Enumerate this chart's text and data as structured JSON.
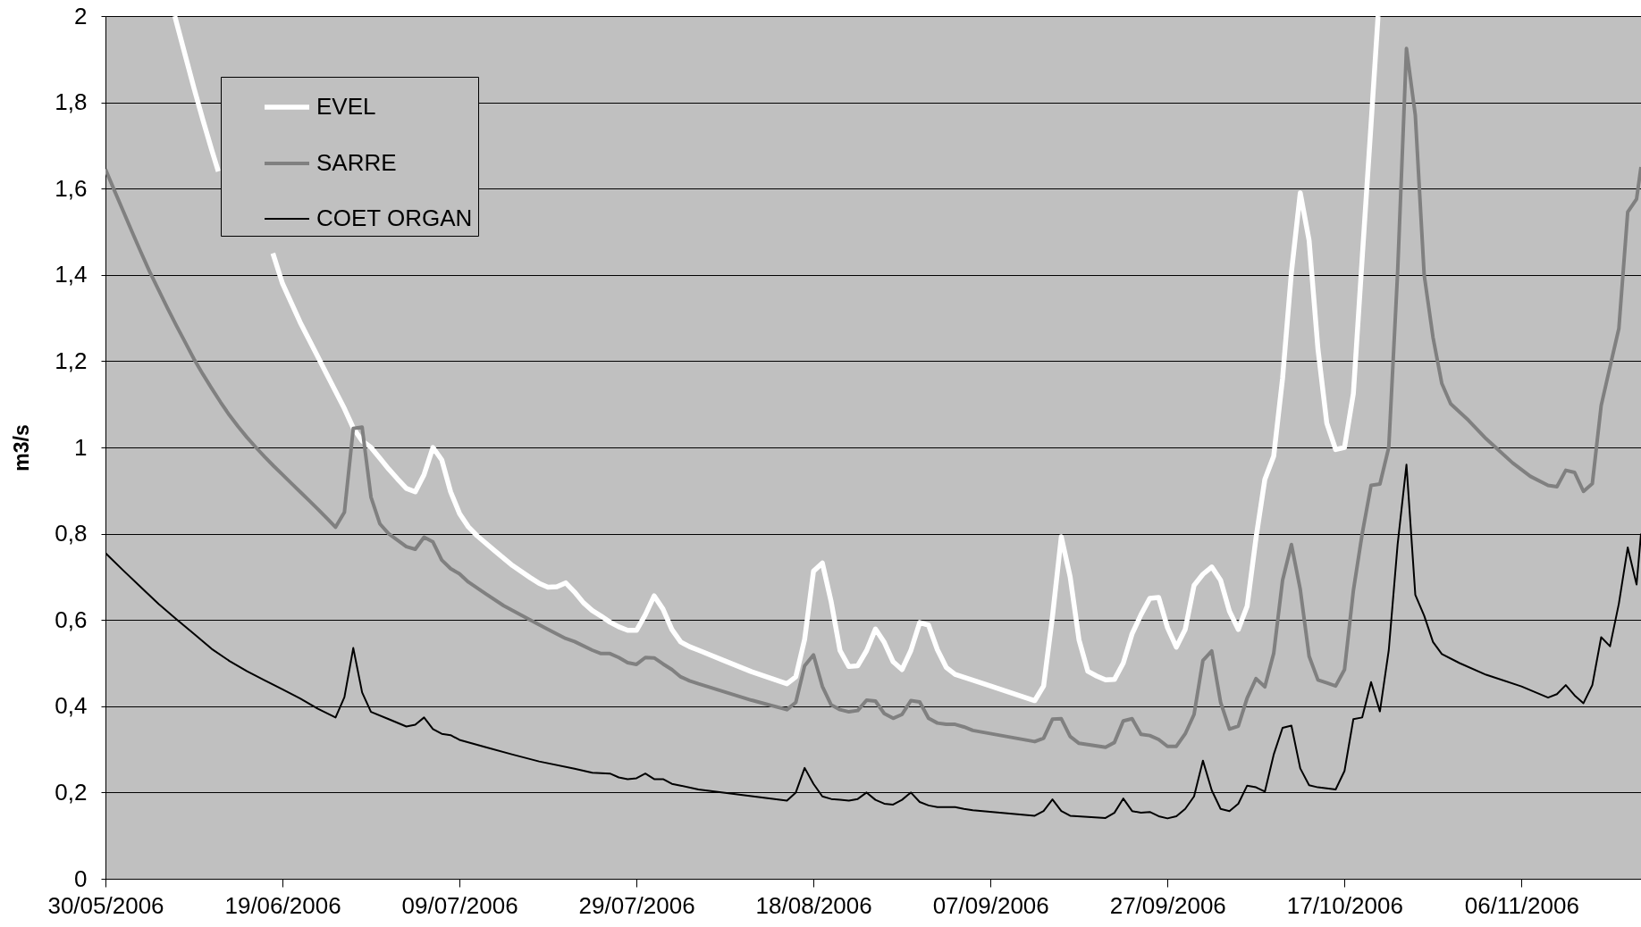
{
  "chart_data": {
    "type": "line",
    "ylabel": "m3/s",
    "xlim": [
      "2006-05-30",
      "2006-11-19T12:00"
    ],
    "xticks": [
      {
        "value": "2006-05-30",
        "label": "30/05/2006"
      },
      {
        "value": "2006-06-19",
        "label": "19/06/2006"
      },
      {
        "value": "2006-07-09",
        "label": "09/07/2006"
      },
      {
        "value": "2006-07-29",
        "label": "29/07/2006"
      },
      {
        "value": "2006-08-18",
        "label": "18/08/2006"
      },
      {
        "value": "2006-09-07",
        "label": "07/09/2006"
      },
      {
        "value": "2006-09-27",
        "label": "27/09/2006"
      },
      {
        "value": "2006-10-17",
        "label": "17/10/2006"
      },
      {
        "value": "2006-11-06",
        "label": "06/11/2006"
      }
    ],
    "ylim": [
      0,
      2
    ],
    "yticks": [
      0,
      {
        "value": 0.2,
        "label": "0,2"
      },
      {
        "value": 0.4,
        "label": "0,4"
      },
      {
        "value": 0.6,
        "label": "0,6"
      },
      {
        "value": 0.8,
        "label": "0,8"
      },
      1,
      {
        "value": 1.2,
        "label": "1,2"
      },
      {
        "value": 1.4,
        "label": "1,4"
      },
      {
        "value": 1.6,
        "label": "1,6"
      },
      {
        "value": 1.8,
        "label": "1,8"
      },
      2
    ],
    "grid": "y",
    "legend": "top left",
    "series": [
      {
        "name": "EVEL",
        "color": "#ffffff",
        "x": [
          "2006-06-06T20:00",
          "2006-06-08",
          "2006-06-09",
          "2006-06-10",
          "2006-06-11",
          "2006-06-11T18:00",
          "2006-06-14",
          "2006-06-17T22:00",
          "2006-06-19",
          "2006-06-20",
          "2006-06-21",
          "2006-06-22",
          "2006-06-23",
          "2006-06-24",
          "2006-06-25",
          "2006-06-26",
          "2006-06-27",
          "2006-06-28",
          "2006-06-29",
          "2006-06-30",
          "2006-07-01",
          "2006-07-02",
          "2006-07-03",
          "2006-07-04",
          "2006-07-05",
          "2006-07-06",
          "2006-07-07",
          "2006-07-08",
          "2006-07-09",
          "2006-07-10",
          "2006-07-11",
          "2006-07-13",
          "2006-07-15",
          "2006-07-17",
          "2006-07-18",
          "2006-07-19",
          "2006-07-20",
          "2006-07-21",
          "2006-07-22",
          "2006-07-23",
          "2006-07-24",
          "2006-07-25",
          "2006-07-26",
          "2006-07-27",
          "2006-07-28",
          "2006-07-29",
          "2006-07-30",
          "2006-07-31",
          "2006-08-01",
          "2006-08-02",
          "2006-08-03",
          "2006-08-04",
          "2006-08-05",
          "2006-08-08",
          "2006-08-11",
          "2006-08-15",
          "2006-08-16",
          "2006-08-17",
          "2006-08-18",
          "2006-08-19",
          "2006-08-20",
          "2006-08-21",
          "2006-08-22",
          "2006-08-23",
          "2006-08-24",
          "2006-08-25",
          "2006-08-26",
          "2006-08-27",
          "2006-08-28",
          "2006-08-29",
          "2006-08-30",
          "2006-08-31",
          "2006-09-01",
          "2006-09-02",
          "2006-09-03",
          "2006-09-07",
          "2006-09-12",
          "2006-09-13",
          "2006-09-14",
          "2006-09-15",
          "2006-09-16",
          "2006-09-17",
          "2006-09-18",
          "2006-09-19",
          "2006-09-20",
          "2006-09-21",
          "2006-09-22",
          "2006-09-23",
          "2006-09-24",
          "2006-09-25",
          "2006-09-26",
          "2006-09-27",
          "2006-09-28",
          "2006-09-29",
          "2006-09-30",
          "2006-10-01",
          "2006-10-02",
          "2006-10-03",
          "2006-10-04",
          "2006-10-05",
          "2006-10-06",
          "2006-10-07",
          "2006-10-08",
          "2006-10-09",
          "2006-10-10",
          "2006-10-11",
          "2006-10-12",
          "2006-10-13",
          "2006-10-14",
          "2006-10-15",
          "2006-10-16",
          "2006-10-17",
          "2006-10-18",
          "2006-10-19",
          "2006-10-20",
          "2006-10-20T19:00"
        ],
        "values": [
          2,
          1.91,
          1.833,
          1.76,
          1.69,
          1.64,
          null,
          1.45,
          1.38,
          1.335,
          1.29,
          1.25,
          1.21,
          1.17,
          1.13,
          1.09,
          1.045,
          1.015,
          1,
          0.975,
          0.95,
          0.927,
          0.905,
          0.897,
          0.937,
          1,
          0.971,
          0.897,
          0.847,
          0.816,
          0.795,
          0.76,
          0.726,
          0.698,
          0.685,
          0.676,
          0.677,
          0.686,
          0.665,
          0.64,
          0.622,
          0.609,
          0.595,
          0.584,
          0.576,
          0.576,
          0.612,
          0.656,
          0.625,
          0.578,
          0.549,
          0.538,
          0.53,
          0.505,
          0.48,
          0.452,
          0.468,
          0.555,
          0.713,
          0.732,
          0.642,
          0.529,
          0.492,
          0.494,
          0.529,
          0.579,
          0.548,
          0.503,
          0.485,
          0.529,
          0.594,
          0.588,
          0.531,
          0.49,
          0.474,
          0.447,
          0.413,
          0.447,
          0.608,
          0.793,
          0.7,
          0.554,
          0.481,
          0.47,
          0.461,
          0.462,
          0.5,
          0.568,
          0.612,
          0.65,
          0.652,
          0.582,
          0.537,
          0.578,
          0.68,
          0.706,
          0.723,
          0.692,
          0.62,
          0.578,
          0.632,
          0.79,
          0.926,
          0.98,
          1.16,
          1.406,
          1.59,
          1.48,
          1.228,
          1.056,
          0.995,
          1,
          1.125,
          1.44,
          1.75,
          2
        ]
      },
      {
        "name": "SARRE",
        "color": "#808080",
        "x": [
          "2006-05-30",
          "2006-05-31",
          "2006-06-01",
          "2006-06-02",
          "2006-06-03",
          "2006-06-04",
          "2006-06-05",
          "2006-06-06",
          "2006-06-07",
          "2006-06-08",
          "2006-06-09",
          "2006-06-10",
          "2006-06-11",
          "2006-06-12",
          "2006-06-13",
          "2006-06-14",
          "2006-06-15",
          "2006-06-16",
          "2006-06-17",
          "2006-06-18",
          "2006-06-19",
          "2006-06-20",
          "2006-06-21",
          "2006-06-22",
          "2006-06-23",
          "2006-06-24",
          "2006-06-25",
          "2006-06-26",
          "2006-06-27",
          "2006-06-28",
          "2006-06-29",
          "2006-06-30",
          "2006-07-01",
          "2006-07-02",
          "2006-07-03",
          "2006-07-04",
          "2006-07-05",
          "2006-07-06",
          "2006-07-07",
          "2006-07-08",
          "2006-07-09",
          "2006-07-10",
          "2006-07-12",
          "2006-07-14",
          "2006-07-17",
          "2006-07-19",
          "2006-07-21",
          "2006-07-22",
          "2006-07-24",
          "2006-07-25",
          "2006-07-26",
          "2006-07-27",
          "2006-07-28",
          "2006-07-29",
          "2006-07-30",
          "2006-07-31",
          "2006-08-01",
          "2006-08-02",
          "2006-08-03",
          "2006-08-04",
          "2006-08-05",
          "2006-08-08",
          "2006-08-11",
          "2006-08-15",
          "2006-08-16",
          "2006-08-17",
          "2006-08-18",
          "2006-08-19",
          "2006-08-20",
          "2006-08-21",
          "2006-08-22",
          "2006-08-23",
          "2006-08-24",
          "2006-08-25",
          "2006-08-26",
          "2006-08-27",
          "2006-08-28",
          "2006-08-29",
          "2006-08-30",
          "2006-08-31",
          "2006-09-01",
          "2006-09-02",
          "2006-09-03",
          "2006-09-04",
          "2006-09-05",
          "2006-09-12",
          "2006-09-13",
          "2006-09-14",
          "2006-09-15",
          "2006-09-16",
          "2006-09-17",
          "2006-09-20",
          "2006-09-21",
          "2006-09-22",
          "2006-09-23",
          "2006-09-24",
          "2006-09-25",
          "2006-09-26",
          "2006-09-27",
          "2006-09-28",
          "2006-09-29",
          "2006-09-30",
          "2006-10-01",
          "2006-10-02",
          "2006-10-03",
          "2006-10-04",
          "2006-10-05",
          "2006-10-06",
          "2006-10-07",
          "2006-10-08",
          "2006-10-09",
          "2006-10-10",
          "2006-10-11",
          "2006-10-12",
          "2006-10-13",
          "2006-10-14",
          "2006-10-15",
          "2006-10-16",
          "2006-10-17",
          "2006-10-18",
          "2006-10-19",
          "2006-10-20",
          "2006-10-21",
          "2006-10-22",
          "2006-10-23",
          "2006-10-24",
          "2006-10-25",
          "2006-10-26",
          "2006-10-27",
          "2006-10-28",
          "2006-10-29",
          "2006-10-31",
          "2006-11-02",
          "2006-11-05",
          "2006-11-07",
          "2006-11-09",
          "2006-11-10",
          "2006-11-11",
          "2006-11-12",
          "2006-11-13",
          "2006-11-14",
          "2006-11-15",
          "2006-11-16",
          "2006-11-17",
          "2006-11-18",
          "2006-11-19",
          "2006-11-19T12:00"
        ],
        "values": [
          1.645,
          1.596,
          1.548,
          1.5,
          1.453,
          1.407,
          1.365,
          1.323,
          1.283,
          1.244,
          1.205,
          1.17,
          1.137,
          1.105,
          1.075,
          1.048,
          1.023,
          1,
          0.978,
          0.957,
          0.937,
          0.917,
          0.897,
          0.877,
          0.857,
          0.836,
          0.815,
          0.85,
          1.044,
          1.047,
          0.885,
          0.823,
          0.8,
          0.785,
          0.77,
          0.764,
          0.792,
          0.781,
          0.739,
          0.719,
          0.707,
          0.688,
          0.66,
          0.633,
          0.6,
          0.578,
          0.557,
          0.55,
          0.53,
          0.522,
          0.522,
          0.513,
          0.501,
          0.497,
          0.513,
          0.512,
          0.498,
          0.485,
          0.468,
          0.459,
          0.452,
          0.433,
          0.414,
          0.392,
          0.409,
          0.494,
          0.519,
          0.446,
          0.403,
          0.392,
          0.387,
          0.39,
          0.414,
          0.412,
          0.383,
          0.372,
          0.381,
          0.413,
          0.41,
          0.372,
          0.361,
          0.358,
          0.358,
          0.352,
          0.344,
          0.318,
          0.326,
          0.37,
          0.371,
          0.33,
          0.314,
          0.305,
          0.316,
          0.366,
          0.371,
          0.335,
          0.332,
          0.323,
          0.307,
          0.307,
          0.336,
          0.381,
          0.506,
          0.528,
          0.409,
          0.347,
          0.354,
          0.419,
          0.464,
          0.445,
          0.523,
          0.692,
          0.775,
          0.671,
          0.516,
          0.461,
          0.454,
          0.447,
          0.485,
          0.668,
          0.8,
          0.912,
          0.915,
          1,
          1.406,
          1.925,
          1.77,
          1.4,
          1.255,
          1.148,
          1.101,
          1.063,
          1.02,
          0.964,
          0.933,
          0.912,
          0.909,
          0.947,
          0.942,
          0.898,
          0.916,
          1.097,
          1.187,
          1.276,
          1.546,
          1.576,
          1.65
        ]
      },
      {
        "name": "COET ORGAN",
        "color": "#000000",
        "x": [
          "2006-05-30",
          "2006-06-01",
          "2006-06-03",
          "2006-06-05",
          "2006-06-07",
          "2006-06-09",
          "2006-06-11",
          "2006-06-13",
          "2006-06-15",
          "2006-06-17",
          "2006-06-19",
          "2006-06-21",
          "2006-06-23",
          "2006-06-25",
          "2006-06-26",
          "2006-06-27",
          "2006-06-28",
          "2006-06-29",
          "2006-07-01",
          "2006-07-03",
          "2006-07-04",
          "2006-07-05",
          "2006-07-06",
          "2006-07-07",
          "2006-07-08",
          "2006-07-09",
          "2006-07-12",
          "2006-07-15",
          "2006-07-18",
          "2006-07-22",
          "2006-07-24",
          "2006-07-26",
          "2006-07-27",
          "2006-07-28",
          "2006-07-29",
          "2006-07-30",
          "2006-07-31",
          "2006-08-01",
          "2006-08-02",
          "2006-08-03",
          "2006-08-05",
          "2006-08-10",
          "2006-08-15",
          "2006-08-16",
          "2006-08-17",
          "2006-08-18",
          "2006-08-19",
          "2006-08-20",
          "2006-08-21",
          "2006-08-22",
          "2006-08-23",
          "2006-08-24",
          "2006-08-25",
          "2006-08-26",
          "2006-08-27",
          "2006-08-28",
          "2006-08-29",
          "2006-08-30",
          "2006-08-31",
          "2006-09-01",
          "2006-09-03",
          "2006-09-04",
          "2006-09-05",
          "2006-09-12",
          "2006-09-13",
          "2006-09-14",
          "2006-09-15",
          "2006-09-16",
          "2006-09-20",
          "2006-09-21",
          "2006-09-22",
          "2006-09-23",
          "2006-09-24",
          "2006-09-25",
          "2006-09-26",
          "2006-09-27",
          "2006-09-28",
          "2006-09-29",
          "2006-09-30",
          "2006-10-01",
          "2006-10-02",
          "2006-10-03",
          "2006-10-04",
          "2006-10-05",
          "2006-10-06",
          "2006-10-07",
          "2006-10-08",
          "2006-10-09",
          "2006-10-10",
          "2006-10-11",
          "2006-10-12",
          "2006-10-13",
          "2006-10-14",
          "2006-10-16",
          "2006-10-17",
          "2006-10-18",
          "2006-10-19",
          "2006-10-20",
          "2006-10-21",
          "2006-10-22",
          "2006-10-23",
          "2006-10-24",
          "2006-10-25",
          "2006-10-26",
          "2006-10-27",
          "2006-10-28",
          "2006-10-30",
          "2006-11-02",
          "2006-11-06",
          "2006-11-09",
          "2006-11-10",
          "2006-11-11",
          "2006-11-12",
          "2006-11-13",
          "2006-11-14",
          "2006-11-15",
          "2006-11-16",
          "2006-11-17",
          "2006-11-18",
          "2006-11-19",
          "2006-11-19T12:00"
        ],
        "values": [
          0.755,
          0.715,
          0.676,
          0.637,
          0.602,
          0.568,
          0.533,
          0.505,
          0.481,
          0.46,
          0.439,
          0.418,
          0.394,
          0.374,
          0.421,
          0.535,
          0.432,
          0.387,
          0.37,
          0.353,
          0.357,
          0.374,
          0.347,
          0.336,
          0.333,
          0.322,
          0.305,
          0.288,
          0.272,
          0.255,
          0.246,
          0.244,
          0.235,
          0.231,
          0.233,
          0.244,
          0.231,
          0.231,
          0.22,
          0.216,
          0.207,
          0.194,
          0.181,
          0.2,
          0.257,
          0.22,
          0.191,
          0.185,
          0.183,
          0.181,
          0.185,
          0.2,
          0.183,
          0.174,
          0.172,
          0.183,
          0.2,
          0.178,
          0.17,
          0.166,
          0.166,
          0.162,
          0.159,
          0.146,
          0.157,
          0.184,
          0.157,
          0.146,
          0.141,
          0.153,
          0.186,
          0.157,
          0.153,
          0.155,
          0.145,
          0.14,
          0.145,
          0.162,
          0.191,
          0.274,
          0.205,
          0.162,
          0.157,
          0.174,
          0.216,
          0.212,
          0.202,
          0.288,
          0.35,
          0.355,
          0.256,
          0.217,
          0.212,
          0.207,
          0.25,
          0.37,
          0.374,
          0.456,
          0.388,
          0.53,
          0.775,
          0.96,
          0.658,
          0.61,
          0.549,
          0.521,
          0.5,
          0.473,
          0.446,
          0.42,
          0.428,
          0.449,
          0.425,
          0.407,
          0.449,
          0.56,
          0.539,
          0.638,
          0.768,
          0.682,
          0.8
        ]
      }
    ]
  }
}
